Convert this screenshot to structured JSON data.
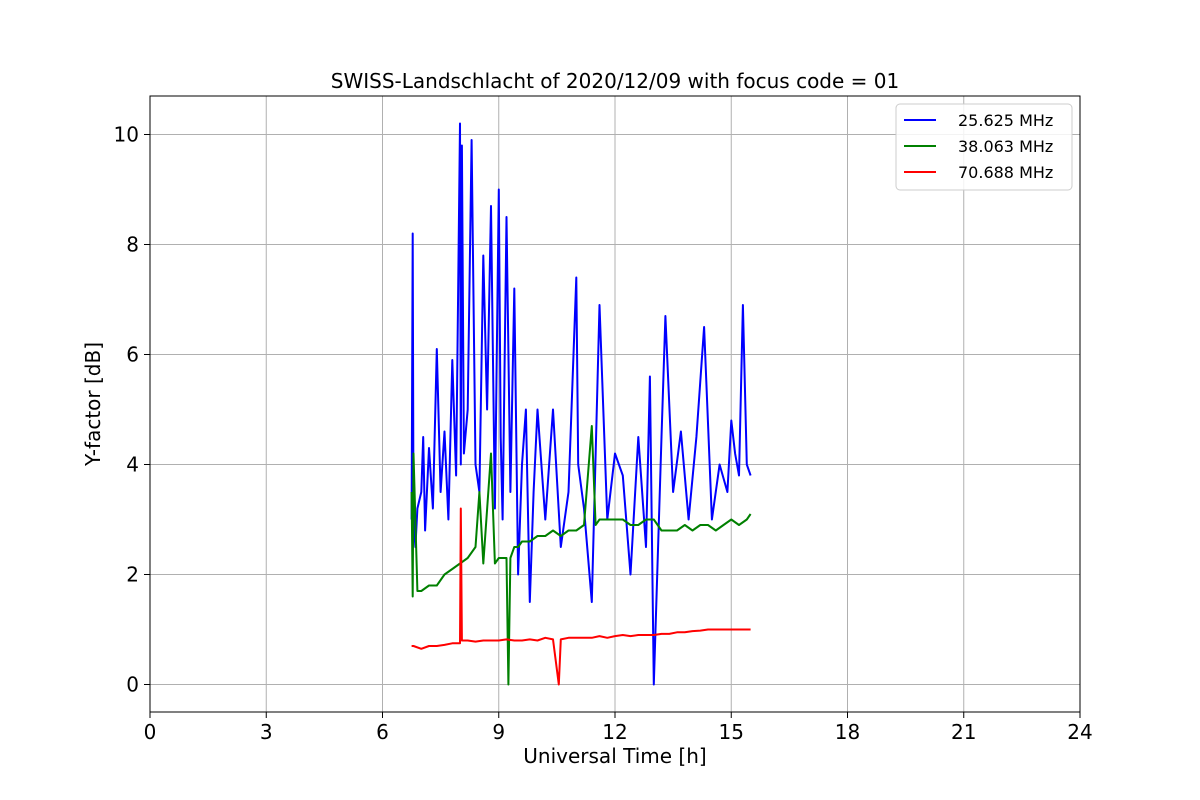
{
  "chart_data": {
    "type": "line",
    "title": "SWISS-Landschlacht of 2020/12/09 with focus code = 01",
    "xlabel": "Universal Time [h]",
    "ylabel": "Y-factor [dB]",
    "xlim": [
      0,
      24
    ],
    "ylim": [
      -0.5,
      10.7
    ],
    "xticks": [
      0,
      3,
      6,
      9,
      12,
      15,
      18,
      21,
      24
    ],
    "yticks": [
      0,
      2,
      4,
      6,
      8,
      10
    ],
    "grid": true,
    "legend_position": "top-right",
    "series": [
      {
        "name": "25.625 MHz",
        "color": "#0000ff",
        "x": [
          6.75,
          6.78,
          6.8,
          6.85,
          6.9,
          7.0,
          7.05,
          7.1,
          7.2,
          7.3,
          7.4,
          7.5,
          7.6,
          7.7,
          7.8,
          7.9,
          8.0,
          8.02,
          8.05,
          8.1,
          8.2,
          8.3,
          8.4,
          8.5,
          8.6,
          8.7,
          8.8,
          8.9,
          9.0,
          9.05,
          9.1,
          9.2,
          9.3,
          9.4,
          9.5,
          9.6,
          9.7,
          9.8,
          9.9,
          10.0,
          10.2,
          10.4,
          10.6,
          10.8,
          11.0,
          11.05,
          11.2,
          11.4,
          11.6,
          11.8,
          12.0,
          12.2,
          12.4,
          12.6,
          12.8,
          12.9,
          13.0,
          13.2,
          13.3,
          13.5,
          13.7,
          13.9,
          14.1,
          14.3,
          14.5,
          14.7,
          14.9,
          15.0,
          15.1,
          15.2,
          15.3,
          15.4,
          15.5
        ],
        "y": [
          3.0,
          8.2,
          3.0,
          2.5,
          3.2,
          3.5,
          4.5,
          2.8,
          4.3,
          3.2,
          6.1,
          3.5,
          4.6,
          3.0,
          5.9,
          3.8,
          10.2,
          4.0,
          9.8,
          4.2,
          5.0,
          9.9,
          4.0,
          3.5,
          7.8,
          5.0,
          8.7,
          3.2,
          9.0,
          4.5,
          3.0,
          8.5,
          3.5,
          7.2,
          2.0,
          4.0,
          5.0,
          1.5,
          3.5,
          5.0,
          3.0,
          5.0,
          2.5,
          3.5,
          7.4,
          4.0,
          3.2,
          1.5,
          6.9,
          3.0,
          4.2,
          3.8,
          2.0,
          4.5,
          2.5,
          5.6,
          0.0,
          4.5,
          6.7,
          3.5,
          4.6,
          3.0,
          4.5,
          6.5,
          3.0,
          4.0,
          3.5,
          4.8,
          4.2,
          3.8,
          6.9,
          4.0,
          3.8
        ]
      },
      {
        "name": "38.063 MHz",
        "color": "#008000",
        "x": [
          6.75,
          6.78,
          6.8,
          6.9,
          7.0,
          7.2,
          7.4,
          7.6,
          7.8,
          8.0,
          8.2,
          8.4,
          8.5,
          8.6,
          8.8,
          8.9,
          9.0,
          9.2,
          9.25,
          9.3,
          9.4,
          9.5,
          9.6,
          9.8,
          10.0,
          10.2,
          10.4,
          10.6,
          10.8,
          11.0,
          11.2,
          11.4,
          11.5,
          11.6,
          11.8,
          12.0,
          12.2,
          12.4,
          12.6,
          12.8,
          13.0,
          13.2,
          13.4,
          13.6,
          13.8,
          14.0,
          14.2,
          14.4,
          14.6,
          14.8,
          15.0,
          15.2,
          15.4,
          15.5
        ],
        "y": [
          3.5,
          1.6,
          4.2,
          1.7,
          1.7,
          1.8,
          1.8,
          2.0,
          2.1,
          2.2,
          2.3,
          2.5,
          3.5,
          2.2,
          4.2,
          2.2,
          2.3,
          2.3,
          0.0,
          2.3,
          2.5,
          2.5,
          2.6,
          2.6,
          2.7,
          2.7,
          2.8,
          2.7,
          2.8,
          2.8,
          2.9,
          4.7,
          2.9,
          3.0,
          3.0,
          3.0,
          3.0,
          2.9,
          2.9,
          3.0,
          3.0,
          2.8,
          2.8,
          2.8,
          2.9,
          2.8,
          2.9,
          2.9,
          2.8,
          2.9,
          3.0,
          2.9,
          3.0,
          3.1
        ]
      },
      {
        "name": "70.688 MHz",
        "color": "#ff0000",
        "x": [
          6.75,
          6.8,
          7.0,
          7.2,
          7.4,
          7.6,
          7.8,
          8.0,
          8.02,
          8.05,
          8.2,
          8.4,
          8.6,
          8.8,
          9.0,
          9.2,
          9.4,
          9.6,
          9.8,
          10.0,
          10.2,
          10.4,
          10.55,
          10.6,
          10.8,
          11.0,
          11.2,
          11.4,
          11.6,
          11.8,
          12.0,
          12.2,
          12.4,
          12.6,
          12.8,
          13.0,
          13.2,
          13.4,
          13.6,
          13.8,
          14.0,
          14.2,
          14.4,
          14.6,
          14.8,
          15.0,
          15.2,
          15.4,
          15.5
        ],
        "y": [
          0.7,
          0.7,
          0.65,
          0.7,
          0.7,
          0.72,
          0.75,
          0.75,
          3.2,
          0.8,
          0.8,
          0.78,
          0.8,
          0.8,
          0.8,
          0.82,
          0.8,
          0.8,
          0.82,
          0.8,
          0.85,
          0.82,
          0.0,
          0.82,
          0.85,
          0.85,
          0.85,
          0.85,
          0.88,
          0.85,
          0.88,
          0.9,
          0.88,
          0.9,
          0.9,
          0.9,
          0.92,
          0.92,
          0.95,
          0.95,
          0.97,
          0.98,
          1.0,
          1.0,
          1.0,
          1.0,
          1.0,
          1.0,
          1.0
        ]
      }
    ]
  }
}
